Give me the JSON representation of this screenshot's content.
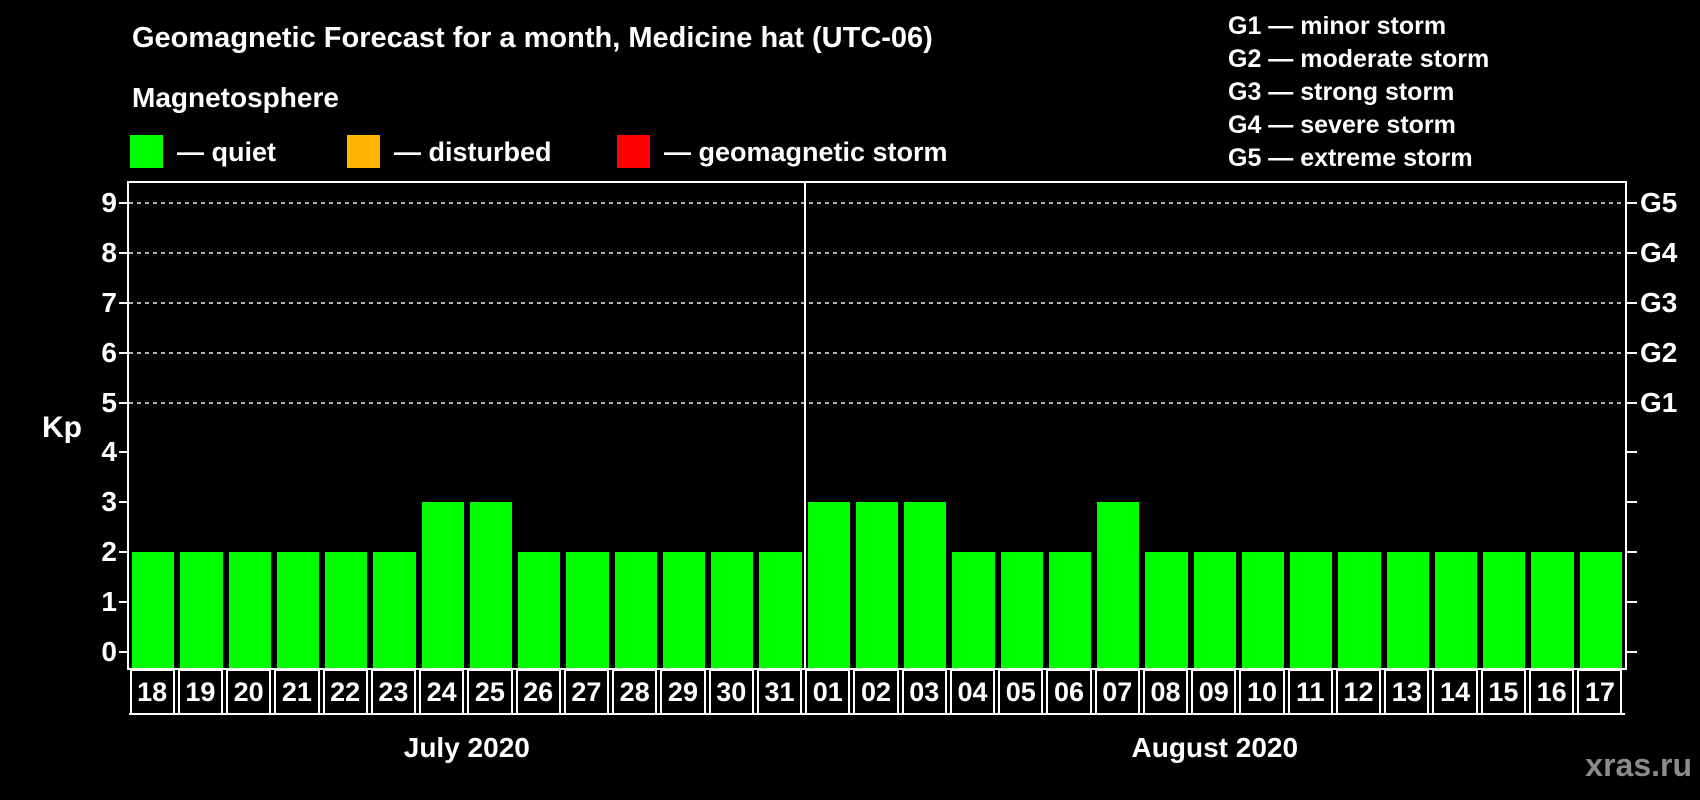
{
  "title": "Geomagnetic Forecast for a month, Medicine hat (UTC-06)",
  "magnetosphere_label": "Magnetosphere",
  "legend_items": [
    {
      "name": "quiet",
      "color": "#00ff00",
      "label": "— quiet"
    },
    {
      "name": "disturbed",
      "color": "#ffb400",
      "label": "— disturbed"
    },
    {
      "name": "geomagnetic-storm",
      "color": "#ff0000",
      "label": "— geomagnetic storm"
    }
  ],
  "g_scale_legend": [
    "G1 — minor storm",
    "G2 — moderate storm",
    "G3 — strong storm",
    "G4 — severe storm",
    "G5 — extreme storm"
  ],
  "watermark": "xras.ru",
  "chart_data": {
    "type": "bar",
    "title": "Geomagnetic Forecast for a month, Medicine hat (UTC-06)",
    "ylabel": "Kp",
    "ylim": [
      0,
      9
    ],
    "yticks": [
      0,
      1,
      2,
      3,
      4,
      5,
      6,
      7,
      8,
      9
    ],
    "grid_dashed_at": [
      5,
      6,
      7,
      8,
      9
    ],
    "right_axis": [
      {
        "kp": 5,
        "label": "G1"
      },
      {
        "kp": 6,
        "label": "G2"
      },
      {
        "kp": 7,
        "label": "G3"
      },
      {
        "kp": 8,
        "label": "G4"
      },
      {
        "kp": 9,
        "label": "G5"
      }
    ],
    "legend_position": "top-right",
    "grid": "dashed horizontal lines at Kp 5-9 only",
    "months": [
      {
        "label": "July 2020",
        "days": [
          "18",
          "19",
          "20",
          "21",
          "22",
          "23",
          "24",
          "25",
          "26",
          "27",
          "28",
          "29",
          "30",
          "31"
        ],
        "values": [
          2,
          2,
          2,
          2,
          2,
          2,
          3,
          3,
          2,
          2,
          2,
          2,
          2,
          2
        ]
      },
      {
        "label": "August 2020",
        "days": [
          "01",
          "02",
          "03",
          "04",
          "05",
          "06",
          "07",
          "08",
          "09",
          "10",
          "11",
          "12",
          "13",
          "14",
          "15",
          "16",
          "17"
        ],
        "values": [
          3,
          3,
          3,
          2,
          2,
          2,
          3,
          2,
          2,
          2,
          2,
          2,
          2,
          2,
          2,
          2,
          2
        ]
      }
    ]
  }
}
